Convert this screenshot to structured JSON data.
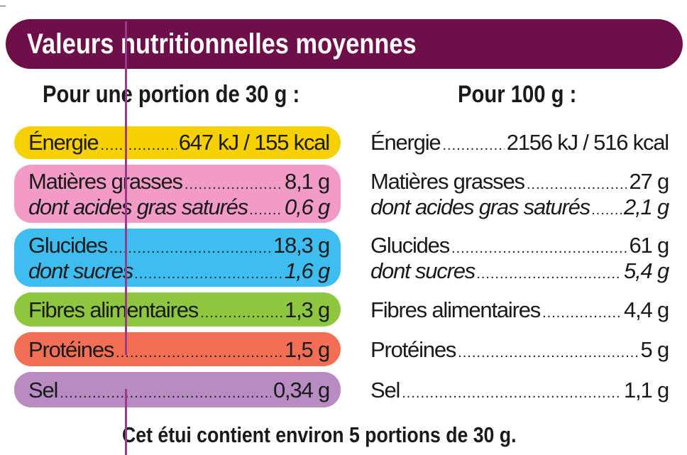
{
  "title": "Valeurs nutritionnelles moyennes",
  "headers": {
    "portion": "Pour une portion de 30 g :",
    "per100": "Pour 100 g :"
  },
  "colors": {
    "banner": "#6e0f4a",
    "energie": "#f7d000",
    "matieres_grasses": "#f29bc6",
    "glucides": "#3dbdf0",
    "fibres": "#8ec63f",
    "proteines": "#f26f56",
    "sel": "#b88cc2",
    "guide_line": "#9b3a8a"
  },
  "portion": {
    "energie": {
      "label": "Énergie",
      "value": "647 kJ / 155 kcal"
    },
    "matieres_grasses": {
      "label": "Matières grasses",
      "value": "8,1 g"
    },
    "acides_gras_satures": {
      "label": "dont acides gras saturés",
      "value": "0,6 g"
    },
    "glucides": {
      "label": "Glucides",
      "value": "18,3 g"
    },
    "sucres": {
      "label": "dont sucres",
      "value": "1,6 g"
    },
    "fibres": {
      "label": "Fibres alimentaires",
      "value": "1,3 g"
    },
    "proteines": {
      "label": "Protéines",
      "value": "1,5 g"
    },
    "sel": {
      "label": "Sel",
      "value": "0,34 g"
    }
  },
  "per100": {
    "energie": {
      "label": "Énergie",
      "value": "2156 kJ / 516 kcal"
    },
    "matieres_grasses": {
      "label": "Matières grasses",
      "value": "27 g"
    },
    "acides_gras_satures": {
      "label": "dont acides gras saturés",
      "value": "2,1 g"
    },
    "glucides": {
      "label": "Glucides",
      "value": "61 g"
    },
    "sucres": {
      "label": "dont sucres",
      "value": "5,4 g"
    },
    "fibres": {
      "label": "Fibres alimentaires",
      "value": "4,4 g"
    },
    "proteines": {
      "label": "Protéines",
      "value": "5 g"
    },
    "sel": {
      "label": "Sel",
      "value": "1,1 g"
    }
  },
  "footer": "Cet étui contient environ 5 portions de 30 g."
}
